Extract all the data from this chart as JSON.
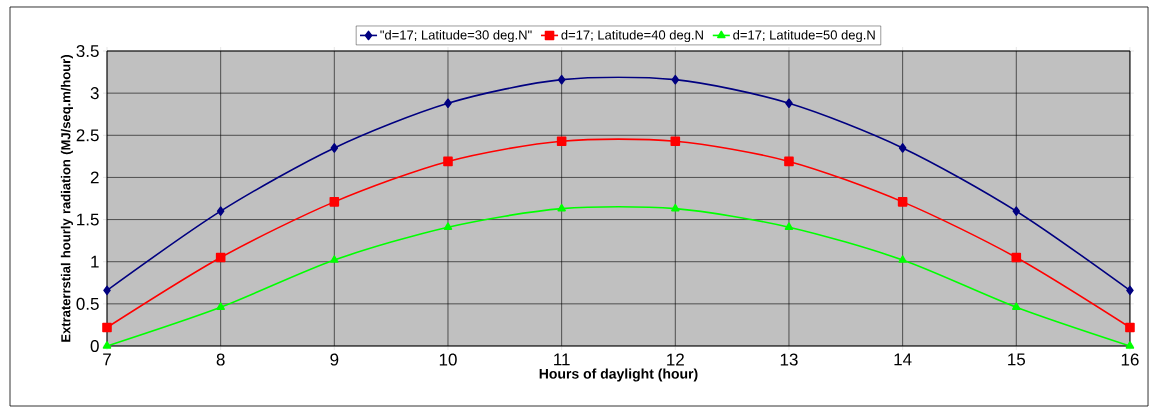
{
  "chart_data": {
    "type": "line",
    "xlabel": "Hours of daylight (hour)",
    "ylabel": "Extraterrstial hourly radiation (MJ/seq.m/hour)",
    "x": [
      7,
      8,
      9,
      10,
      11,
      12,
      13,
      14,
      15,
      16
    ],
    "series": [
      {
        "name": "\"d=17; Latitude=30 deg.N\"",
        "color": "#000080",
        "marker": "diamond",
        "values": [
          0.66,
          1.6,
          2.35,
          2.88,
          3.16,
          3.16,
          2.88,
          2.35,
          1.6,
          0.66
        ]
      },
      {
        "name": "d=17; Latitude=40 deg.N",
        "color": "#ff0000",
        "marker": "square",
        "values": [
          0.22,
          1.05,
          1.71,
          2.19,
          2.43,
          2.43,
          2.19,
          1.71,
          1.05,
          0.22
        ]
      },
      {
        "name": "d=17; Latitude=50 deg.N",
        "color": "#00ff00",
        "marker": "triangle",
        "values": [
          0.0,
          0.46,
          1.02,
          1.41,
          1.63,
          1.63,
          1.41,
          1.02,
          0.46,
          0.0
        ]
      }
    ],
    "xlim": [
      7,
      16
    ],
    "xticks": [
      7,
      8,
      9,
      10,
      11,
      12,
      13,
      14,
      15,
      16
    ],
    "ylim": [
      0,
      3.5
    ],
    "yticks": [
      0,
      0.5,
      1,
      1.5,
      2,
      2.5,
      3,
      3.5
    ],
    "grid": true,
    "legend": "top",
    "line_style": "solid"
  }
}
